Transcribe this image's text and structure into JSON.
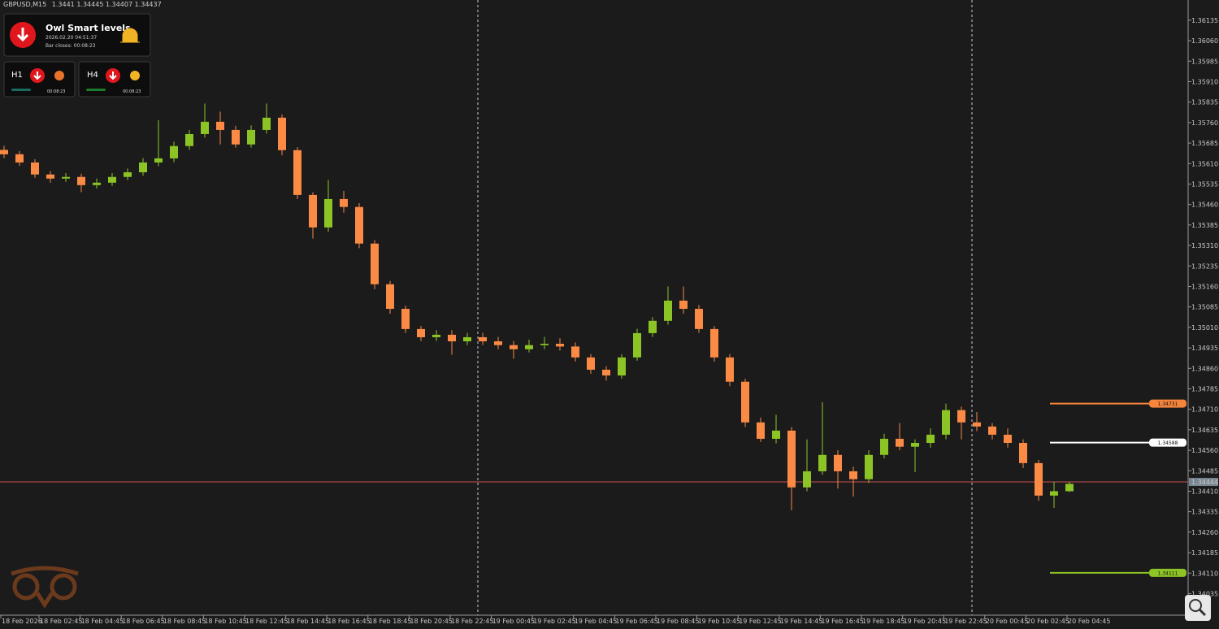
{
  "chart_data": {
    "type": "candlestick",
    "title": "GBPUSD,M15",
    "open": [
      1.3566,
      1.35644,
      1.35614,
      1.3557,
      1.35555,
      1.35561,
      1.35531,
      1.3554,
      1.35561,
      1.35578,
      1.35614,
      1.35629,
      1.35674,
      1.35718,
      1.35763,
      1.35733,
      1.3568,
      1.35733,
      1.35778,
      1.35659,
      1.35495,
      1.35376,
      1.3548,
      1.35451,
      1.35317,
      1.35168,
      1.35078,
      1.35004,
      1.34974,
      1.34983,
      1.34959,
      1.34974,
      1.34959,
      1.34945,
      1.3493,
      1.34945,
      1.3495,
      1.3494,
      1.349,
      1.34855,
      1.34834,
      1.349,
      1.34989,
      1.35034,
      1.35108,
      1.35078,
      1.35004,
      1.349,
      1.34811,
      1.34662,
      1.34602,
      1.34632,
      1.34424,
      1.34483,
      1.34543,
      1.34483,
      1.34454,
      1.34543,
      1.34602,
      1.34573,
      1.34587,
      1.34617,
      1.34707,
      1.34662,
      1.34647,
      1.34617,
      1.34587,
      1.34513,
      1.34394,
      1.3441
    ],
    "high": [
      1.35675,
      1.35656,
      1.35626,
      1.35582,
      1.35575,
      1.35573,
      1.35555,
      1.35575,
      1.35592,
      1.3563,
      1.35769,
      1.3569,
      1.35733,
      1.3583,
      1.358,
      1.35748,
      1.3575,
      1.3583,
      1.3579,
      1.3567,
      1.35505,
      1.3555,
      1.3551,
      1.35465,
      1.3533,
      1.3518,
      1.3509,
      1.35015,
      1.35,
      1.35,
      1.3499,
      1.3499,
      1.34975,
      1.3496,
      1.34965,
      1.34975,
      1.3497,
      1.34955,
      1.34912,
      1.34868,
      1.34912,
      1.35005,
      1.35048,
      1.3516,
      1.3516,
      1.35092,
      1.35015,
      1.34912,
      1.34822,
      1.3468,
      1.3469,
      1.34645,
      1.346,
      1.34736,
      1.3456,
      1.345,
      1.3456,
      1.3462,
      1.3466,
      1.346,
      1.3464,
      1.34731,
      1.3472,
      1.347,
      1.3466,
      1.3464,
      1.346,
      1.34525,
      1.34445,
      1.34445
    ],
    "low": [
      1.3563,
      1.35602,
      1.35558,
      1.3554,
      1.35543,
      1.35505,
      1.35518,
      1.35528,
      1.35549,
      1.35565,
      1.356,
      1.35615,
      1.3566,
      1.35705,
      1.3568,
      1.35668,
      1.35668,
      1.3572,
      1.3564,
      1.3548,
      1.35335,
      1.3536,
      1.3543,
      1.353,
      1.3515,
      1.3506,
      1.3499,
      1.3496,
      1.3496,
      1.3491,
      1.34945,
      1.34945,
      1.3493,
      1.34895,
      1.34918,
      1.3493,
      1.34925,
      1.34885,
      1.3484,
      1.34815,
      1.34822,
      1.34888,
      1.34975,
      1.3502,
      1.3506,
      1.3499,
      1.34885,
      1.34795,
      1.34645,
      1.3459,
      1.34585,
      1.3434,
      1.3441,
      1.3447,
      1.3442,
      1.3439,
      1.3444,
      1.3453,
      1.3456,
      1.3448,
      1.3457,
      1.346,
      1.346,
      1.3463,
      1.346,
      1.3457,
      1.34495,
      1.34375,
      1.34349,
      1.34407
    ],
    "close": [
      1.35644,
      1.35614,
      1.3557,
      1.35555,
      1.35561,
      1.35531,
      1.3554,
      1.35561,
      1.35578,
      1.35614,
      1.35629,
      1.35674,
      1.35718,
      1.35763,
      1.35733,
      1.3568,
      1.35733,
      1.35778,
      1.35659,
      1.35495,
      1.35376,
      1.3548,
      1.35451,
      1.35317,
      1.35168,
      1.35078,
      1.35004,
      1.34974,
      1.34983,
      1.34959,
      1.34974,
      1.34959,
      1.34945,
      1.3493,
      1.34945,
      1.3495,
      1.3494,
      1.349,
      1.34855,
      1.34834,
      1.349,
      1.34989,
      1.35034,
      1.35108,
      1.35078,
      1.35004,
      1.349,
      1.34811,
      1.34662,
      1.34602,
      1.34632,
      1.34424,
      1.34483,
      1.34543,
      1.34483,
      1.34454,
      1.34543,
      1.34602,
      1.34573,
      1.34587,
      1.34617,
      1.34707,
      1.34662,
      1.34647,
      1.34617,
      1.34587,
      1.34513,
      1.34394,
      1.3441,
      1.34437
    ],
    "up_color": "#8cc425",
    "down_color": "#fb8a45",
    "ylim": [
      1.33956,
      1.36209
    ],
    "yticks": [
      1.36135,
      {
        "value": 1.3606,
        "label": "1.36060"
      },
      1.35985,
      {
        "value": 1.3591,
        "label": "1.35910"
      },
      1.35835,
      {
        "value": 1.3576,
        "label": "1.35760"
      },
      1.35685,
      {
        "value": 1.3561,
        "label": "1.35610"
      },
      1.35535,
      {
        "value": 1.3546,
        "label": "1.35460"
      },
      1.35385,
      {
        "value": 1.3531,
        "label": "1.35310"
      },
      1.35235,
      {
        "value": 1.3516,
        "label": "1.35160"
      },
      1.35085,
      {
        "value": 1.3501,
        "label": "1.35010"
      },
      1.34935,
      {
        "value": 1.3486,
        "label": "1.34860"
      },
      1.34785,
      {
        "value": 1.3471,
        "label": "1.34710"
      },
      1.34635,
      {
        "value": 1.3456,
        "label": "1.34560"
      },
      1.34485,
      {
        "value": 1.3441,
        "label": "1.34410"
      },
      1.34335,
      {
        "value": 1.3426,
        "label": "1.34260"
      },
      1.34185,
      {
        "value": 1.3411,
        "label": "1.34110"
      },
      1.34035
    ],
    "xticks": [
      "18 Feb 2026",
      "18 Feb 02:45",
      "18 Feb 04:45",
      "18 Feb 06:45",
      "18 Feb 08:45",
      "18 Feb 10:45",
      "18 Feb 12:45",
      "18 Feb 14:45",
      "18 Feb 16:45",
      "18 Feb 18:45",
      "18 Feb 20:45",
      "18 Feb 22:45",
      "19 Feb 00:45",
      "19 Feb 02:45",
      "19 Feb 04:45",
      "19 Feb 06:45",
      "19 Feb 08:45",
      "19 Feb 10:45",
      "19 Feb 12:45",
      "19 Feb 14:45",
      "19 Feb 16:45",
      "19 Feb 18:45",
      "19 Feb 20:45",
      "19 Feb 22:45",
      "20 Feb 00:45",
      "20 Feb 02:45",
      "20 Feb 04:45"
    ],
    "current_price": 1.34444,
    "current_price_color": "#c0504d",
    "levels": [
      {
        "value": 1.34731,
        "color": "#f5843c"
      },
      {
        "value": 1.34588,
        "color": "#ffffff"
      },
      {
        "value": 1.34111,
        "color": "#8cc425"
      }
    ]
  },
  "indicator": {
    "title": "Owl Smart levels",
    "time": "2026.02.20 04:51:37",
    "bar_closes": "Bar closes: 00:08:23",
    "frames": [
      {
        "label": "H1",
        "timer": "00:08:23"
      },
      {
        "label": "H4",
        "timer": "00:08:23"
      }
    ]
  }
}
